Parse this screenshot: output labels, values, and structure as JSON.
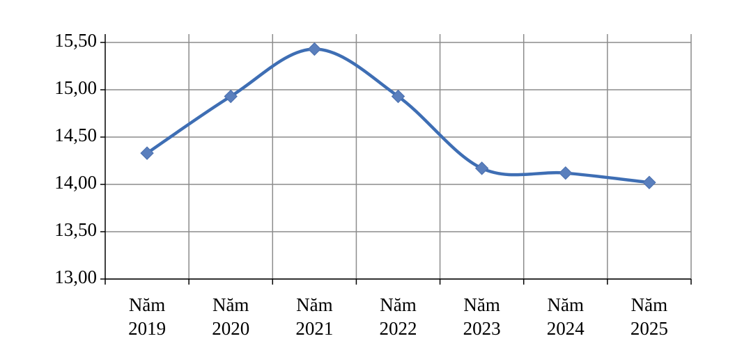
{
  "chart_data": {
    "type": "line",
    "categories": [
      "Năm 2019",
      "Năm 2020",
      "Năm 2021",
      "Năm 2022",
      "Năm 2023",
      "Năm 2024",
      "Năm 2025"
    ],
    "series": [
      {
        "color": "#3e6eb4",
        "values": [
          14.33,
          14.93,
          15.43,
          14.93,
          14.17,
          14.12,
          14.02
        ]
      }
    ],
    "ylim": [
      13,
      15.5
    ],
    "yticks": [
      {
        "value": 13,
        "label": "13,00"
      },
      {
        "value": 13.5,
        "label": "13,50"
      },
      {
        "value": 14,
        "label": "14,00"
      },
      {
        "value": 14.5,
        "label": "14,50"
      },
      {
        "value": 15,
        "label": "15,00"
      },
      {
        "value": 15.5,
        "label": "15,50"
      }
    ],
    "grid": true,
    "smooth": true
  }
}
